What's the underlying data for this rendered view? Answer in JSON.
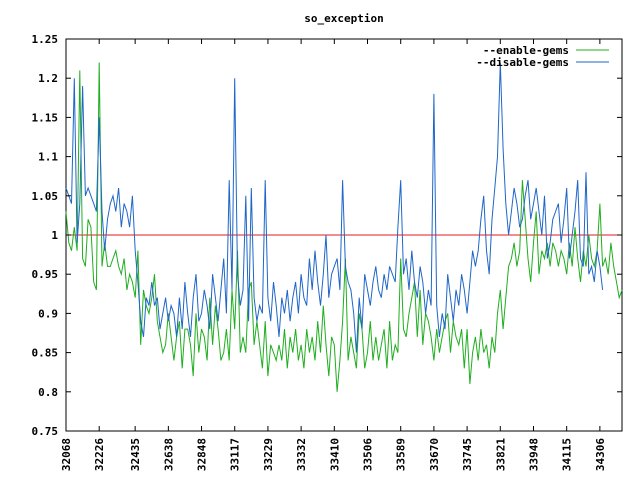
{
  "chart_data": {
    "type": "line",
    "title": "so_exception",
    "xlabel": "",
    "ylabel": "",
    "ylim": [
      0.75,
      1.25
    ],
    "y_ticks": [
      0.75,
      0.8,
      0.85,
      0.9,
      0.95,
      1,
      1.05,
      1.1,
      1.15,
      1.2,
      1.25
    ],
    "y_tick_labels": [
      "0.75",
      "0.8",
      "0.85",
      "0.9",
      "0.95",
      "1",
      "1.05",
      "1.1",
      "1.15",
      "1.2",
      "1.25"
    ],
    "x_tick_labels": [
      "32068",
      "32226",
      "32435",
      "32638",
      "32848",
      "33117",
      "33229",
      "33332",
      "33410",
      "33506",
      "33589",
      "33670",
      "33745",
      "33821",
      "33948",
      "34115",
      "34306"
    ],
    "x_tick_index": [
      0,
      12,
      25,
      37,
      49,
      61,
      73,
      85,
      97,
      109,
      121,
      133,
      145,
      157,
      169,
      181,
      193
    ],
    "grid": false,
    "legend_position": "top-right",
    "reference_line": {
      "y": 1,
      "color": "#e41a1c"
    },
    "series": [
      {
        "name": "--enable-gems",
        "color": "#1fae1f",
        "values": [
          1.03,
          0.99,
          0.98,
          1.01,
          0.98,
          1.21,
          0.97,
          0.96,
          1.02,
          1.01,
          0.94,
          0.93,
          1.22,
          0.96,
          0.99,
          0.96,
          0.96,
          0.97,
          0.98,
          0.96,
          0.95,
          0.97,
          0.93,
          0.95,
          0.94,
          0.92,
          0.98,
          0.86,
          0.93,
          0.91,
          0.9,
          0.92,
          0.95,
          0.89,
          0.87,
          0.85,
          0.86,
          0.9,
          0.87,
          0.84,
          0.87,
          0.89,
          0.83,
          0.88,
          0.88,
          0.86,
          0.82,
          0.9,
          0.85,
          0.88,
          0.87,
          0.84,
          0.92,
          0.86,
          0.91,
          0.88,
          0.84,
          0.85,
          0.88,
          0.84,
          0.93,
          0.88,
          0.98,
          0.85,
          0.87,
          0.85,
          0.93,
          0.94,
          0.86,
          0.89,
          0.86,
          0.83,
          0.89,
          0.82,
          0.86,
          0.85,
          0.84,
          0.86,
          0.84,
          0.88,
          0.83,
          0.87,
          0.85,
          0.88,
          0.84,
          0.86,
          0.83,
          0.88,
          0.85,
          0.87,
          0.84,
          0.89,
          0.85,
          0.91,
          0.86,
          0.82,
          0.87,
          0.86,
          0.8,
          0.84,
          0.89,
          0.97,
          0.84,
          0.87,
          0.85,
          0.83,
          0.9,
          0.88,
          0.83,
          0.85,
          0.89,
          0.84,
          0.87,
          0.84,
          0.86,
          0.88,
          0.83,
          0.89,
          0.84,
          0.86,
          0.85,
          0.97,
          0.88,
          0.87,
          0.9,
          0.92,
          0.94,
          0.87,
          0.93,
          0.86,
          0.9,
          0.89,
          0.87,
          0.84,
          0.88,
          0.85,
          0.87,
          0.89,
          0.9,
          0.85,
          0.89,
          0.87,
          0.86,
          0.88,
          0.83,
          0.88,
          0.81,
          0.85,
          0.87,
          0.84,
          0.88,
          0.85,
          0.86,
          0.83,
          0.87,
          0.85,
          0.9,
          0.93,
          0.88,
          0.92,
          0.96,
          0.97,
          0.99,
          0.96,
          0.98,
          1.07,
          1.02,
          0.97,
          0.94,
          0.99,
          1.03,
          0.95,
          0.98,
          0.97,
          0.99,
          0.96,
          0.99,
          0.98,
          0.96,
          0.98,
          0.97,
          0.95,
          0.99,
          0.96,
          1.01,
          0.97,
          0.94,
          0.98,
          0.96,
          1.0,
          0.97,
          0.96,
          0.98,
          1.04,
          0.96,
          0.97,
          0.95,
          0.99,
          0.96,
          0.94,
          0.92,
          0.93
        ]
      },
      {
        "name": "--disable-gems",
        "color": "#1f66c8",
        "values": [
          1.06,
          1.05,
          1.04,
          1.2,
          0.99,
          1.04,
          1.19,
          1.05,
          1.06,
          1.05,
          1.04,
          1.03,
          1.15,
          1.03,
          0.98,
          1.02,
          1.04,
          1.05,
          1.03,
          1.06,
          1.01,
          1.04,
          1.03,
          1.01,
          1.05,
          0.98,
          0.94,
          0.89,
          0.87,
          0.92,
          0.91,
          0.94,
          0.91,
          0.92,
          0.88,
          0.9,
          0.92,
          0.89,
          0.91,
          0.9,
          0.87,
          0.92,
          0.88,
          0.94,
          0.9,
          0.87,
          0.92,
          0.95,
          0.89,
          0.9,
          0.93,
          0.91,
          0.88,
          0.95,
          0.92,
          0.89,
          0.93,
          0.97,
          0.9,
          1.07,
          0.93,
          1.2,
          0.95,
          0.91,
          0.93,
          1.05,
          0.89,
          1.06,
          0.92,
          0.89,
          0.91,
          0.9,
          1.07,
          0.92,
          0.89,
          0.94,
          0.91,
          0.87,
          0.92,
          0.9,
          0.93,
          0.89,
          0.92,
          0.94,
          0.9,
          0.95,
          0.92,
          0.91,
          0.97,
          0.93,
          0.98,
          0.94,
          0.91,
          0.95,
          1.0,
          0.92,
          0.95,
          0.96,
          0.97,
          0.93,
          1.07,
          0.96,
          0.94,
          0.93,
          0.9,
          0.85,
          0.92,
          0.88,
          0.95,
          0.93,
          0.91,
          0.94,
          0.96,
          0.93,
          0.92,
          0.95,
          0.93,
          0.96,
          0.95,
          0.94,
          1.01,
          1.07,
          0.95,
          0.97,
          0.93,
          0.98,
          0.94,
          0.92,
          0.96,
          0.94,
          0.9,
          0.93,
          0.91,
          1.18,
          0.91,
          0.87,
          0.9,
          0.88,
          0.95,
          0.92,
          0.89,
          0.93,
          0.91,
          0.95,
          0.93,
          0.9,
          0.94,
          0.98,
          0.96,
          0.98,
          1.02,
          1.05,
          0.98,
          0.95,
          1.02,
          1.06,
          1.1,
          1.22,
          1.11,
          1.04,
          1.0,
          1.03,
          1.06,
          1.04,
          1.01,
          1.02,
          1.05,
          1.07,
          1.02,
          1.04,
          1.06,
          1.03,
          1.0,
          1.05,
          0.97,
          0.99,
          1.02,
          1.03,
          1.04,
          0.99,
          1.02,
          1.06,
          0.97,
          1.0,
          1.03,
          1.07,
          0.97,
          0.96,
          1.08,
          0.95,
          0.96,
          0.94,
          0.98,
          0.96,
          0.93
        ]
      }
    ]
  }
}
